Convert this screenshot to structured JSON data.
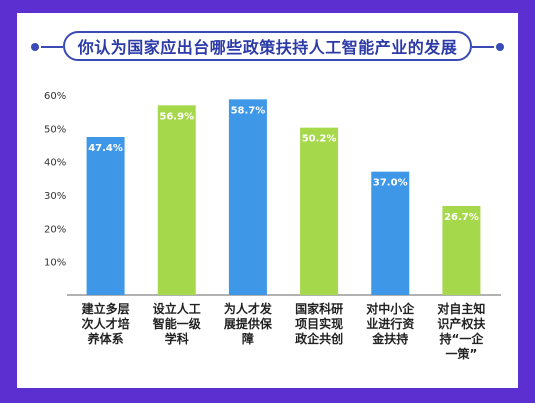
{
  "title": "你认为国家应出台哪些政策扶持人工智能产业的发展",
  "colors": {
    "background": "#5b2fd0",
    "accent": "#3a4bb5",
    "blue": "#3f97e8",
    "green": "#a6d84b"
  },
  "chart_data": {
    "type": "bar",
    "title": "你认为国家应出台哪些政策扶持人工智能产业的发展",
    "unit": "%",
    "ylim": [
      0,
      60
    ],
    "yticks": [
      "10%",
      "20%",
      "30%",
      "40%",
      "50%",
      "60%"
    ],
    "ytick_values": [
      10,
      20,
      30,
      40,
      50,
      60
    ],
    "grid": false,
    "categories": [
      [
        "建立多层",
        "次人才培",
        "养体系"
      ],
      [
        "设立人工",
        "智能一级",
        "学科"
      ],
      [
        "为人才发",
        "展提供保",
        "障"
      ],
      [
        "国家科研",
        "项目实现",
        "政企共创"
      ],
      [
        "对中小企",
        "业进行资",
        "金扶持"
      ],
      [
        "对自主知",
        "识产权扶",
        "持“一企",
        "一策”"
      ]
    ],
    "values": [
      47.4,
      56.9,
      58.7,
      50.2,
      37.0,
      26.7
    ],
    "value_labels": [
      "47.4%",
      "56.9%",
      "58.7%",
      "50.2%",
      "37.0%",
      "26.7%"
    ],
    "bar_colors": [
      "#3f97e8",
      "#a6d84b",
      "#3f97e8",
      "#a6d84b",
      "#3f97e8",
      "#a6d84b"
    ]
  }
}
